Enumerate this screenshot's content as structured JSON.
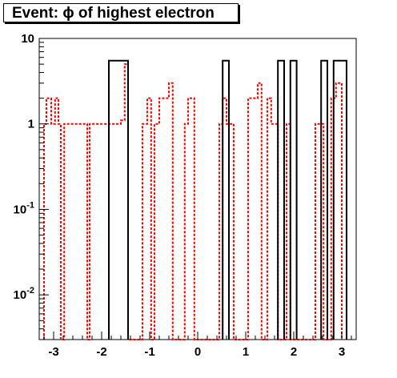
{
  "chart_data": {
    "type": "histogram",
    "title": "Event: ϕ of highest electron",
    "xlabel": "",
    "ylabel": "",
    "x_range": [
      -3.3,
      3.3
    ],
    "y_range": [
      0.003,
      10
    ],
    "y_log": true,
    "grid": false,
    "legend": "none",
    "x_ticks": [
      "-3",
      "-2",
      "-1",
      "0",
      "1",
      "2",
      "3"
    ],
    "x_tick_values": [
      -3,
      -2,
      -1,
      0,
      1,
      2,
      3
    ],
    "y_ticks": [
      {
        "base": "10",
        "exp": "",
        "value": 10
      },
      {
        "base": "1",
        "exp": "",
        "value": 1
      },
      {
        "base": "10",
        "exp": "-1",
        "value": 0.1
      },
      {
        "base": "10",
        "exp": "-2",
        "value": 0.01
      }
    ],
    "bin_edges_start": -3.3,
    "bin_width": 0.1,
    "series": [
      {
        "color": "#000000",
        "style": "solid",
        "values": [
          0,
          0,
          0,
          0,
          0,
          0,
          0,
          0,
          0,
          0,
          0,
          0,
          0,
          0,
          0,
          0,
          0,
          0,
          0,
          0,
          0,
          0,
          0,
          0,
          0,
          0,
          0,
          0,
          0,
          0,
          0,
          0,
          0,
          0,
          0,
          0,
          0,
          0,
          0,
          0,
          0,
          0,
          0,
          0,
          0,
          0,
          0,
          0,
          0,
          0,
          0,
          0,
          0,
          0,
          0,
          0,
          0,
          0,
          0,
          0,
          0,
          0,
          0,
          0,
          0,
          0,
          0
        ]
      },
      {
        "color": "#ff0000",
        "style": "dotted",
        "values": []
      }
    ],
    "black_bins": [
      {
        "x0": -1.85,
        "x1": -1.45,
        "y": 5.5
      },
      {
        "x0": 0.52,
        "x1": 0.65,
        "y": 5.5
      },
      {
        "x0": 1.67,
        "x1": 1.8,
        "y": 5.5
      },
      {
        "x0": 1.93,
        "x1": 2.06,
        "y": 5.5
      },
      {
        "x0": 2.57,
        "x1": 2.7,
        "y": 5.5
      },
      {
        "x0": 2.83,
        "x1": 3.1,
        "y": 5.5
      }
    ],
    "red_steps": [
      [
        -3.2,
        0.003
      ],
      [
        -3.2,
        1
      ],
      [
        -3.15,
        1
      ],
      [
        -3.15,
        2
      ],
      [
        -3.05,
        2
      ],
      [
        -3.05,
        1
      ],
      [
        -2.97,
        1
      ],
      [
        -2.97,
        2
      ],
      [
        -2.9,
        2
      ],
      [
        -2.9,
        1
      ],
      [
        -2.85,
        1
      ],
      [
        -2.85,
        0.003
      ],
      [
        -2.78,
        0.003
      ],
      [
        -2.78,
        1
      ],
      [
        -2.3,
        1
      ],
      [
        -2.3,
        0.003
      ],
      [
        -2.25,
        0.003
      ],
      [
        -2.25,
        1
      ],
      [
        -1.65,
        1
      ],
      [
        -1.65,
        1
      ],
      [
        -1.6,
        1
      ],
      [
        -1.6,
        1.1
      ],
      [
        -1.52,
        1.1
      ],
      [
        -1.52,
        5
      ],
      [
        -1.45,
        5
      ],
      [
        -1.45,
        0.003
      ],
      [
        -1.15,
        0.003
      ],
      [
        -1.15,
        1
      ],
      [
        -1.05,
        1
      ],
      [
        -1.05,
        2
      ],
      [
        -0.97,
        2
      ],
      [
        -0.97,
        0.003
      ],
      [
        -0.9,
        0.003
      ],
      [
        -0.9,
        1
      ],
      [
        -0.8,
        1
      ],
      [
        -0.8,
        2
      ],
      [
        -0.6,
        2
      ],
      [
        -0.6,
        3
      ],
      [
        -0.52,
        3
      ],
      [
        -0.52,
        0.003
      ],
      [
        -0.27,
        0.003
      ],
      [
        -0.27,
        1
      ],
      [
        -0.2,
        1
      ],
      [
        -0.2,
        2
      ],
      [
        -0.07,
        2
      ],
      [
        -0.07,
        0.003
      ],
      [
        0.45,
        0.003
      ],
      [
        0.45,
        1
      ],
      [
        0.52,
        1
      ],
      [
        0.52,
        2
      ],
      [
        0.6,
        2
      ],
      [
        0.6,
        1
      ],
      [
        0.75,
        1
      ],
      [
        0.75,
        0.003
      ],
      [
        1.05,
        0.003
      ],
      [
        1.05,
        2
      ],
      [
        1.25,
        2
      ],
      [
        1.25,
        3
      ],
      [
        1.33,
        3
      ],
      [
        1.33,
        0.003
      ],
      [
        1.45,
        0.003
      ],
      [
        1.45,
        2
      ],
      [
        1.53,
        2
      ],
      [
        1.53,
        1
      ],
      [
        1.6,
        1
      ],
      [
        1.6,
        1
      ],
      [
        1.67,
        1
      ],
      [
        1.67,
        0.003
      ],
      [
        1.85,
        0.003
      ],
      [
        1.85,
        1
      ],
      [
        1.93,
        1
      ],
      [
        1.93,
        0.003
      ],
      [
        2.45,
        0.003
      ],
      [
        2.45,
        1
      ],
      [
        2.62,
        1
      ],
      [
        2.62,
        0.003
      ],
      [
        2.78,
        0.003
      ],
      [
        2.78,
        2
      ],
      [
        2.88,
        2
      ],
      [
        2.88,
        3
      ],
      [
        3.0,
        3
      ],
      [
        3.0,
        0.003
      ]
    ]
  }
}
